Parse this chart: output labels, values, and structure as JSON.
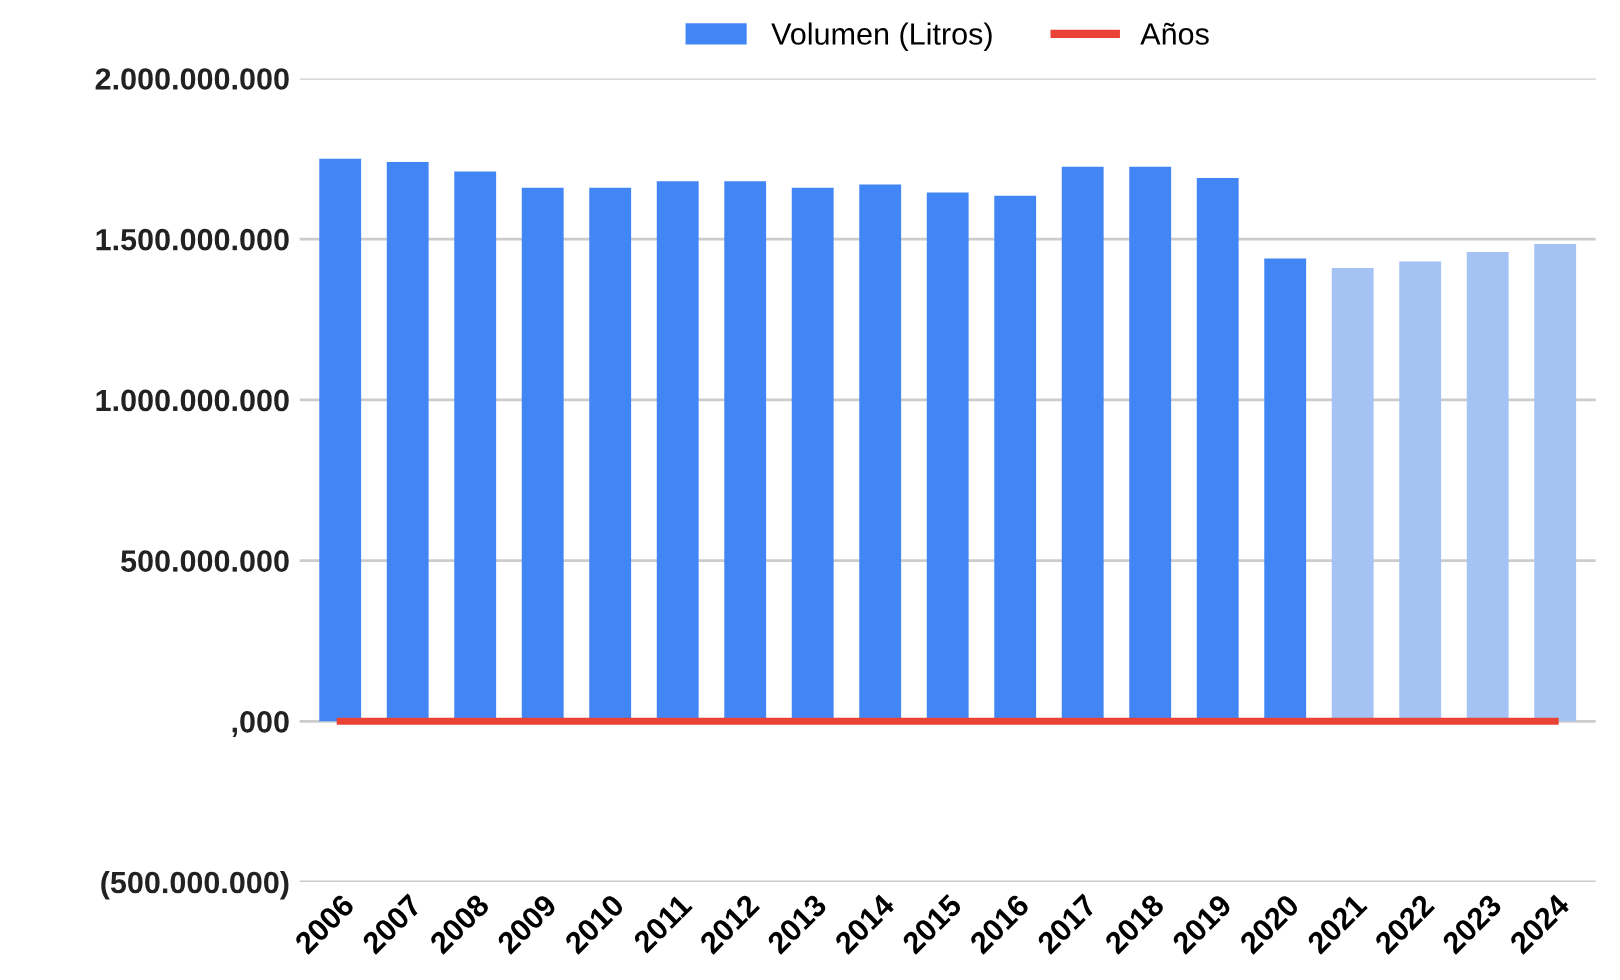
{
  "chart_data": {
    "type": "bar",
    "categories": [
      "2006",
      "2007",
      "2008",
      "2009",
      "2010",
      "2011",
      "2012",
      "2013",
      "2014",
      "2015",
      "2016",
      "2017",
      "2018",
      "2019",
      "2020",
      "2021",
      "2022",
      "2023",
      "2024"
    ],
    "series": [
      {
        "name": "Volumen (Litros)",
        "color": "#4285f4",
        "colors": [
          "#4285f4",
          "#4285f4",
          "#4285f4",
          "#4285f4",
          "#4285f4",
          "#4285f4",
          "#4285f4",
          "#4285f4",
          "#4285f4",
          "#4285f4",
          "#4285f4",
          "#4285f4",
          "#4285f4",
          "#4285f4",
          "#4285f4",
          "#a4c2f4",
          "#a4c2f4",
          "#a4c2f4",
          "#a4c2f4"
        ],
        "values": [
          1750000000,
          1740000000,
          1710000000,
          1660000000,
          1660000000,
          1680000000,
          1680000000,
          1660000000,
          1670000000,
          1645000000,
          1635000000,
          1725000000,
          1725000000,
          1690000000,
          1440000000,
          1410000000,
          1430000000,
          1460000000,
          1485000000
        ]
      },
      {
        "name": "Años",
        "type": "line",
        "color": "#ea4335",
        "values": [
          0,
          0,
          0,
          0,
          0,
          0,
          0,
          0,
          0,
          0,
          0,
          0,
          0,
          0,
          0,
          0,
          0,
          0,
          0
        ]
      }
    ],
    "ylim": [
      -500000000,
      2000000000
    ],
    "yticks": [
      {
        "value": -500000000,
        "label": "(500.000.000)"
      },
      {
        "value": 0,
        "label": ",000"
      },
      {
        "value": 500000000,
        "label": "500.000.000"
      },
      {
        "value": 1000000000,
        "label": "1.000.000.000"
      },
      {
        "value": 1500000000,
        "label": "1.500.000.000"
      },
      {
        "value": 2000000000,
        "label": "2.000.000.000"
      }
    ],
    "grid": "y",
    "legend": "top"
  }
}
